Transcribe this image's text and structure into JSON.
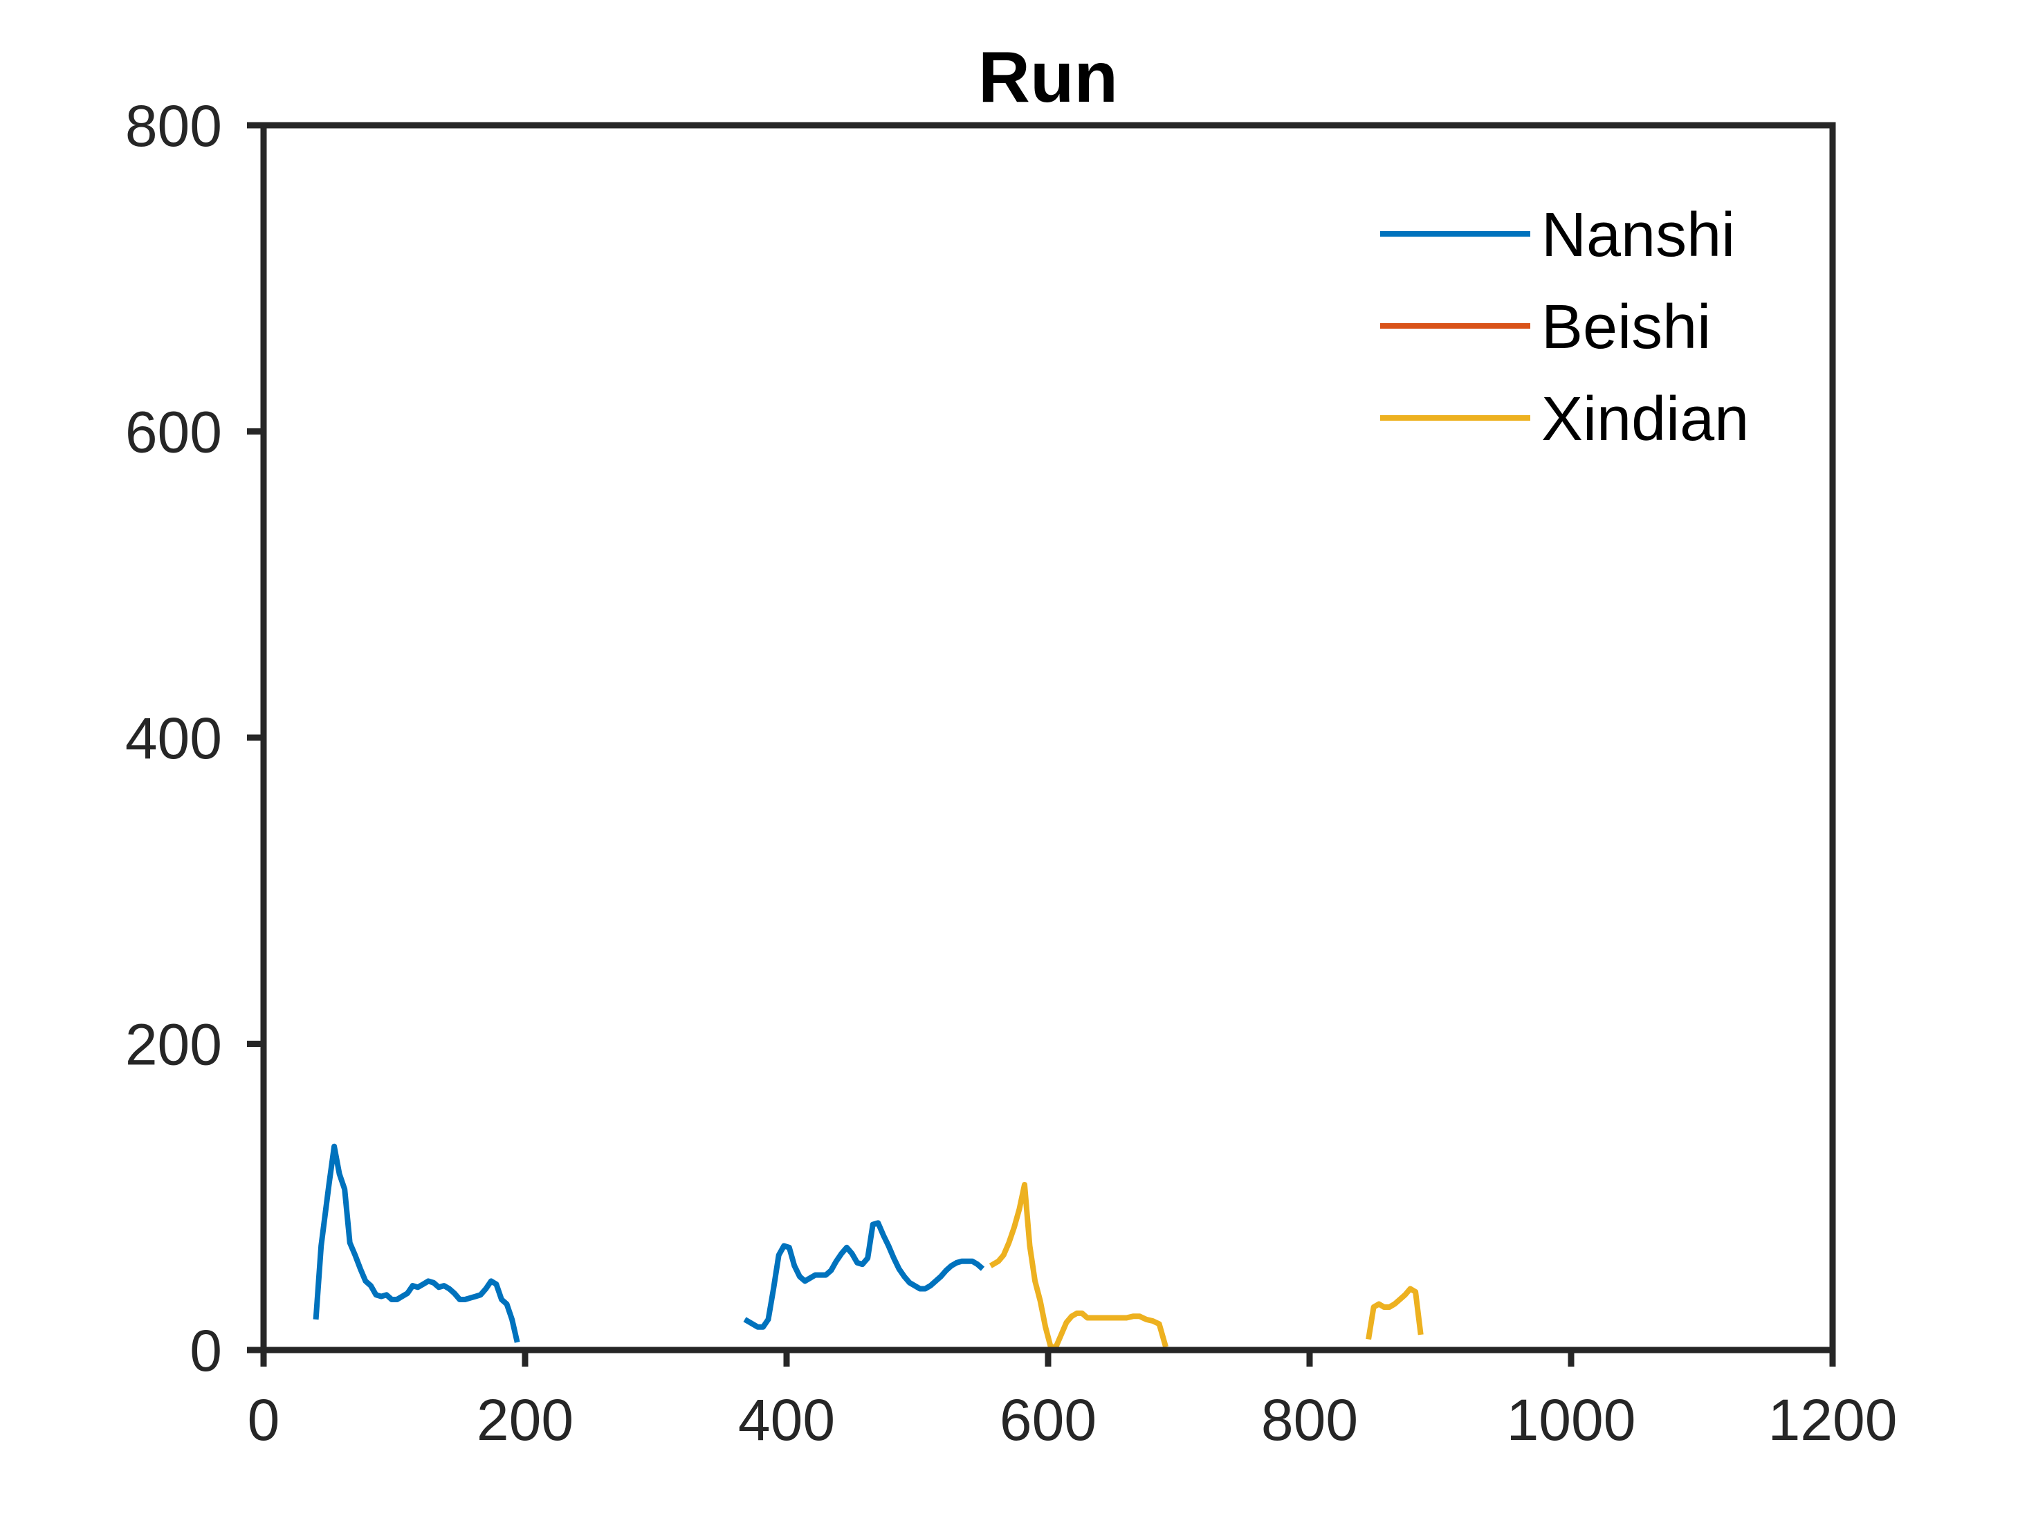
{
  "chart_data": {
    "type": "line",
    "title": "Run",
    "xlabel": "",
    "ylabel": "",
    "xlim": [
      0,
      1200
    ],
    "ylim": [
      0,
      800
    ],
    "xticks": [
      "0",
      "200",
      "400",
      "600",
      "800",
      "1000",
      "1200"
    ],
    "yticks": [
      "0",
      "200",
      "400",
      "600",
      "800"
    ],
    "grid": false,
    "legend_position": "top-right",
    "series": [
      {
        "name": "Nanshi",
        "color": "#0072BD",
        "segments": [
          [
            [
              40,
              20
            ],
            [
              44,
              68
            ],
            [
              50,
              108
            ],
            [
              54,
              133
            ],
            [
              58,
              115
            ],
            [
              62,
              105
            ],
            [
              66,
              70
            ],
            [
              70,
              62
            ],
            [
              74,
              53
            ],
            [
              78,
              45
            ],
            [
              82,
              42
            ],
            [
              86,
              36
            ],
            [
              90,
              35
            ],
            [
              94,
              36
            ],
            [
              98,
              33
            ],
            [
              102,
              33
            ],
            [
              106,
              35
            ],
            [
              110,
              37
            ],
            [
              114,
              42
            ],
            [
              118,
              41
            ],
            [
              122,
              43
            ],
            [
              126,
              45
            ],
            [
              130,
              44
            ],
            [
              134,
              41
            ],
            [
              138,
              42
            ],
            [
              142,
              40
            ],
            [
              146,
              37
            ],
            [
              150,
              33
            ],
            [
              154,
              33
            ],
            [
              158,
              34
            ],
            [
              162,
              35
            ],
            [
              166,
              36
            ],
            [
              170,
              40
            ],
            [
              174,
              45
            ],
            [
              178,
              43
            ],
            [
              182,
              33
            ],
            [
              186,
              30
            ],
            [
              190,
              20
            ],
            [
              194,
              5
            ]
          ],
          [
            [
              368,
              20
            ],
            [
              372,
              18
            ],
            [
              378,
              15
            ],
            [
              382,
              15
            ],
            [
              386,
              20
            ],
            [
              390,
              40
            ],
            [
              394,
              62
            ],
            [
              398,
              68
            ],
            [
              402,
              67
            ],
            [
              406,
              55
            ],
            [
              410,
              48
            ],
            [
              414,
              45
            ],
            [
              418,
              47
            ],
            [
              422,
              49
            ],
            [
              426,
              49
            ],
            [
              430,
              49
            ],
            [
              434,
              52
            ],
            [
              438,
              58
            ],
            [
              442,
              63
            ],
            [
              446,
              67
            ],
            [
              450,
              63
            ],
            [
              454,
              57
            ],
            [
              458,
              56
            ],
            [
              462,
              60
            ],
            [
              466,
              82
            ],
            [
              470,
              83
            ],
            [
              474,
              75
            ],
            [
              478,
              68
            ],
            [
              482,
              60
            ],
            [
              486,
              53
            ],
            [
              490,
              48
            ],
            [
              494,
              44
            ],
            [
              498,
              42
            ],
            [
              502,
              40
            ],
            [
              506,
              40
            ],
            [
              510,
              42
            ],
            [
              514,
              45
            ],
            [
              518,
              48
            ],
            [
              522,
              52
            ],
            [
              526,
              55
            ],
            [
              530,
              57
            ],
            [
              534,
              58
            ],
            [
              538,
              58
            ],
            [
              542,
              58
            ],
            [
              546,
              56
            ],
            [
              550,
              53
            ]
          ]
        ]
      },
      {
        "name": "Beishi",
        "color": "#D95319",
        "segments": []
      },
      {
        "name": "Xindian",
        "color": "#EDB120",
        "segments": [
          [
            [
              556,
              55
            ],
            [
              562,
              58
            ],
            [
              566,
              62
            ],
            [
              570,
              70
            ],
            [
              574,
              80
            ],
            [
              578,
              92
            ],
            [
              582,
              108
            ],
            [
              586,
              68
            ],
            [
              590,
              45
            ],
            [
              594,
              32
            ],
            [
              598,
              15
            ],
            [
              602,
              2
            ],
            [
              606,
              2
            ],
            [
              610,
              10
            ],
            [
              614,
              18
            ],
            [
              618,
              22
            ],
            [
              622,
              24
            ],
            [
              626,
              24
            ],
            [
              630,
              21
            ],
            [
              635,
              21
            ],
            [
              640,
              21
            ],
            [
              645,
              21
            ],
            [
              650,
              21
            ],
            [
              655,
              21
            ],
            [
              660,
              21
            ],
            [
              665,
              22
            ],
            [
              670,
              22
            ],
            [
              675,
              20
            ],
            [
              680,
              19
            ],
            [
              685,
              17
            ],
            [
              690,
              2
            ]
          ],
          [
            [
              845,
              7
            ],
            [
              849,
              28
            ],
            [
              853,
              30
            ],
            [
              857,
              28
            ],
            [
              861,
              28
            ],
            [
              865,
              30
            ],
            [
              869,
              33
            ],
            [
              873,
              36
            ],
            [
              877,
              40
            ],
            [
              881,
              38
            ],
            [
              885,
              10
            ]
          ]
        ]
      }
    ]
  }
}
